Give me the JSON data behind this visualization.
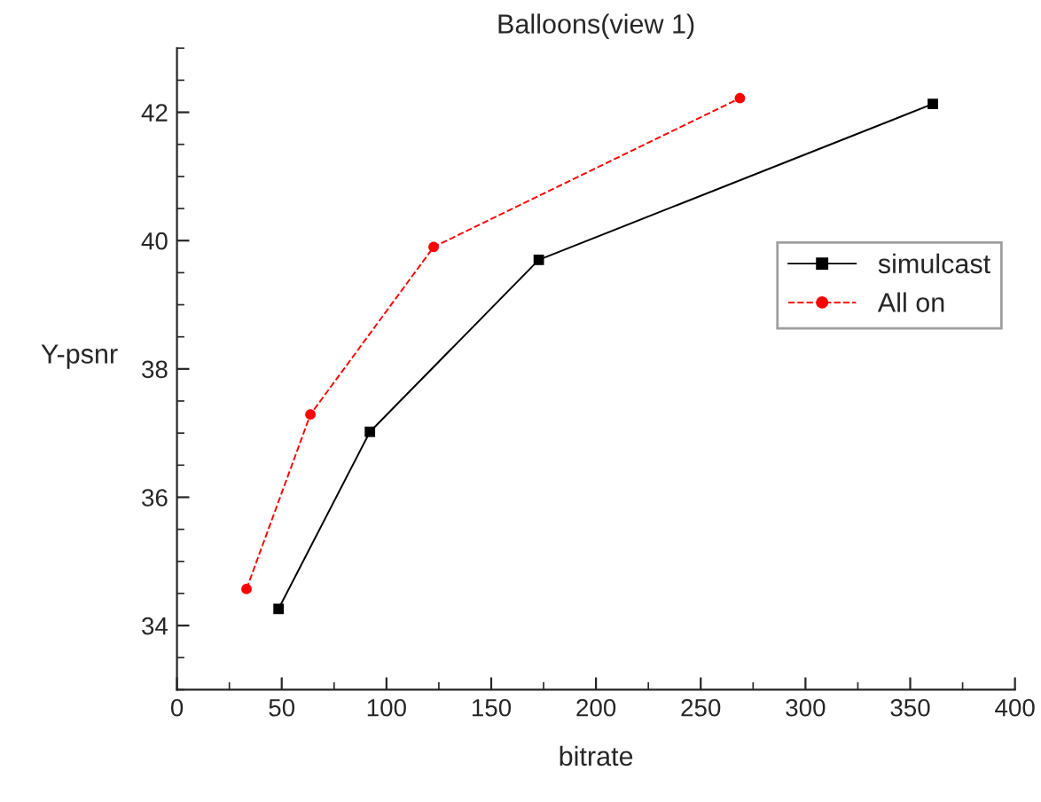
{
  "chart_data": {
    "type": "line",
    "title": "Balloons(view 1)",
    "xlabel": "bitrate",
    "ylabel": "Y-psnr",
    "series": [
      {
        "name": "simulcast",
        "color": "#000000",
        "marker": "square",
        "line_style": "solid",
        "x": [
          48.5,
          92.1,
          172.7,
          360.8
        ],
        "values": [
          34.26,
          37.02,
          39.7,
          42.13
        ]
      },
      {
        "name": "All on",
        "color": "#ff0000",
        "marker": "circle",
        "line_style": "dashed",
        "x": [
          33.2,
          63.7,
          122.5,
          268.7
        ],
        "values": [
          34.57,
          37.29,
          39.9,
          42.22
        ]
      }
    ],
    "xlim": [
      0,
      400
    ],
    "xticks": [
      0,
      50,
      100,
      150,
      200,
      250,
      300,
      350,
      400
    ],
    "ylim": [
      33,
      43
    ],
    "yticks": [
      34,
      36,
      38,
      40,
      42
    ],
    "grid": false,
    "legend": "right"
  }
}
